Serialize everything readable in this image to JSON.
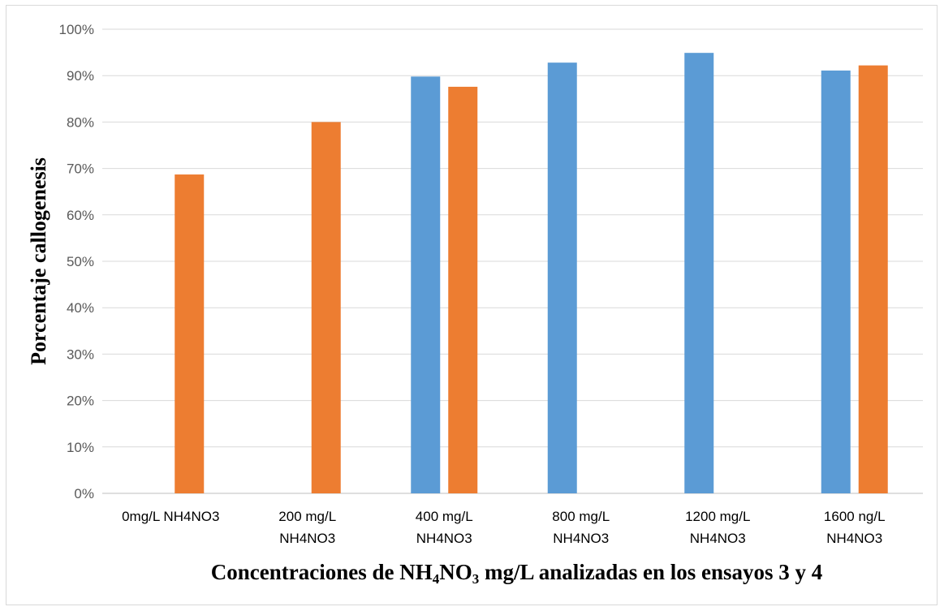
{
  "chart_data": {
    "type": "bar",
    "categories": [
      [
        "0mg/L  NH4NO3"
      ],
      [
        "200 mg/L",
        "NH4NO3"
      ],
      [
        "400 mg/L",
        "NH4NO3"
      ],
      [
        "800 mg/L",
        "NH4NO3"
      ],
      [
        "1200 mg/L",
        "NH4NO3"
      ],
      [
        "1600 ng/L",
        "NH4NO3"
      ]
    ],
    "series": [
      {
        "values": [
          0,
          0,
          89.8,
          92.8,
          94.9,
          91.1
        ],
        "color": "#5b9bd5"
      },
      {
        "values": [
          68.7,
          80.0,
          87.6,
          null,
          null,
          92.2
        ],
        "color": "#ed7d31"
      }
    ],
    "ylim": [
      0,
      100
    ],
    "yticks": [
      "0%",
      "10%",
      "20%",
      "30%",
      "40%",
      "50%",
      "60%",
      "70%",
      "80%",
      "90%",
      "100%"
    ],
    "ylabel": "Porcentaje  callogenesis",
    "xlabel_parts": {
      "before": "Concentraciones  de NH",
      "sub1": "4",
      "mid": "NO",
      "sub2": "3",
      "after": " mg/L analizadas  en los ensayos 3 y 4"
    },
    "grid": true,
    "legend": "none"
  }
}
